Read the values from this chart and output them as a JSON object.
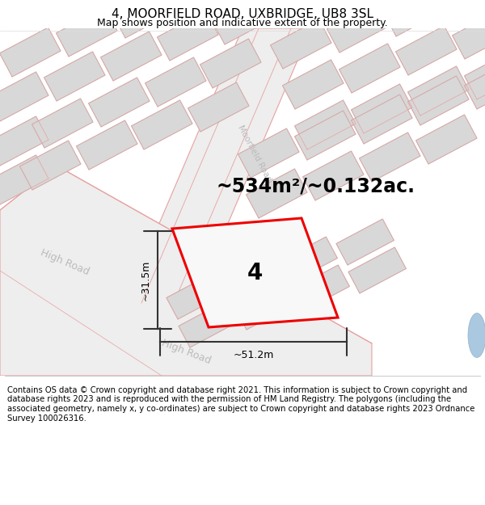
{
  "title": "4, MOORFIELD ROAD, UXBRIDGE, UB8 3SL",
  "subtitle": "Map shows position and indicative extent of the property.",
  "footer": "Contains OS data © Crown copyright and database right 2021. This information is subject to Crown copyright and database rights 2023 and is reproduced with the permission of HM Land Registry. The polygons (including the associated geometry, namely x, y co-ordinates) are subject to Crown copyright and database rights 2023 Ordnance Survey 100026316.",
  "area_text": "~534m²/~0.132ac.",
  "width_label": "~51.2m",
  "height_label": "~31.5m",
  "property_number": "4",
  "bg_color": "#ffffff",
  "block_fill": "#d8d8d8",
  "block_edge": "#c0c0c0",
  "road_fill": "#eeeeee",
  "road_edge": "#e8a0a0",
  "road_line": "#e8a0a0",
  "property_stroke": "#ee0000",
  "property_fill": "#f8f8f8",
  "dim_color": "#333333",
  "road_label_color": "#bbbbbb",
  "title_fontsize": 11,
  "subtitle_fontsize": 9,
  "footer_fontsize": 7.2,
  "area_fontsize": 17,
  "label_fontsize": 8.5
}
